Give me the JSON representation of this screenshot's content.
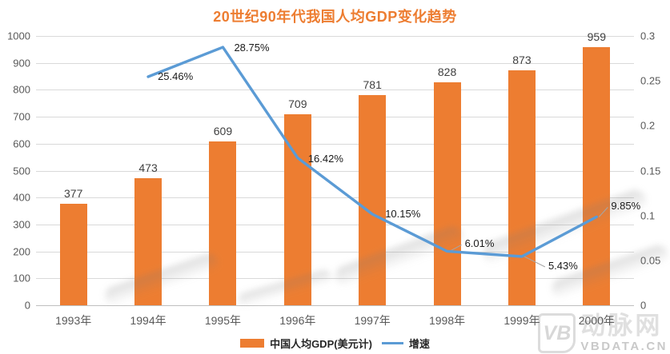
{
  "title": "20世纪90年代我国人均GDP变化趋势",
  "colors": {
    "bar": "#ED7D31",
    "line": "#5B9BD5",
    "title": "#ED7D31",
    "grid": "#D9D9D9",
    "axis_text": "#595959",
    "value_text": "#404040",
    "leader": "#A6A6A6"
  },
  "legend": [
    {
      "label": "中国人均GDP(美元计)",
      "type": "bar",
      "color": "#ED7D31"
    },
    {
      "label": "增速",
      "type": "line",
      "color": "#5B9BD5"
    }
  ],
  "watermark": {
    "logo": "VB",
    "brand": "动脉网",
    "site": "VBDATA.CN"
  },
  "chart_data": {
    "type": "bar+line combo",
    "title": "20世纪90年代我国人均GDP变化趋势",
    "categories": [
      "1993年",
      "1994年",
      "1995年",
      "1996年",
      "1997年",
      "1998年",
      "1999年",
      "2000年"
    ],
    "series": [
      {
        "name": "中国人均GDP(美元计)",
        "type": "bar",
        "axis": "left",
        "values": [
          377,
          473,
          609,
          709,
          781,
          828,
          873,
          959
        ],
        "labels": [
          "377",
          "473",
          "609",
          "709",
          "781",
          "828",
          "873",
          "959"
        ]
      },
      {
        "name": "增速",
        "type": "line",
        "axis": "right",
        "values": [
          null,
          0.2546,
          0.2875,
          0.1642,
          0.1015,
          0.0601,
          0.0543,
          0.0985
        ],
        "labels": [
          null,
          "25.46%",
          "28.75%",
          "16.42%",
          "10.15%",
          "6.01%",
          "5.43%",
          "9.85%"
        ]
      }
    ],
    "left_axis": {
      "min": 0,
      "max": 1000,
      "step": 100,
      "ticks": [
        "0",
        "100",
        "200",
        "300",
        "400",
        "500",
        "600",
        "700",
        "800",
        "900",
        "1000"
      ]
    },
    "right_axis": {
      "min": 0,
      "max": 0.3,
      "step": 0.05,
      "ticks": [
        "0",
        "0.05",
        "0.1",
        "0.15",
        "0.2",
        "0.25",
        "0.3"
      ]
    },
    "grid": true,
    "legend_position": "bottom"
  }
}
